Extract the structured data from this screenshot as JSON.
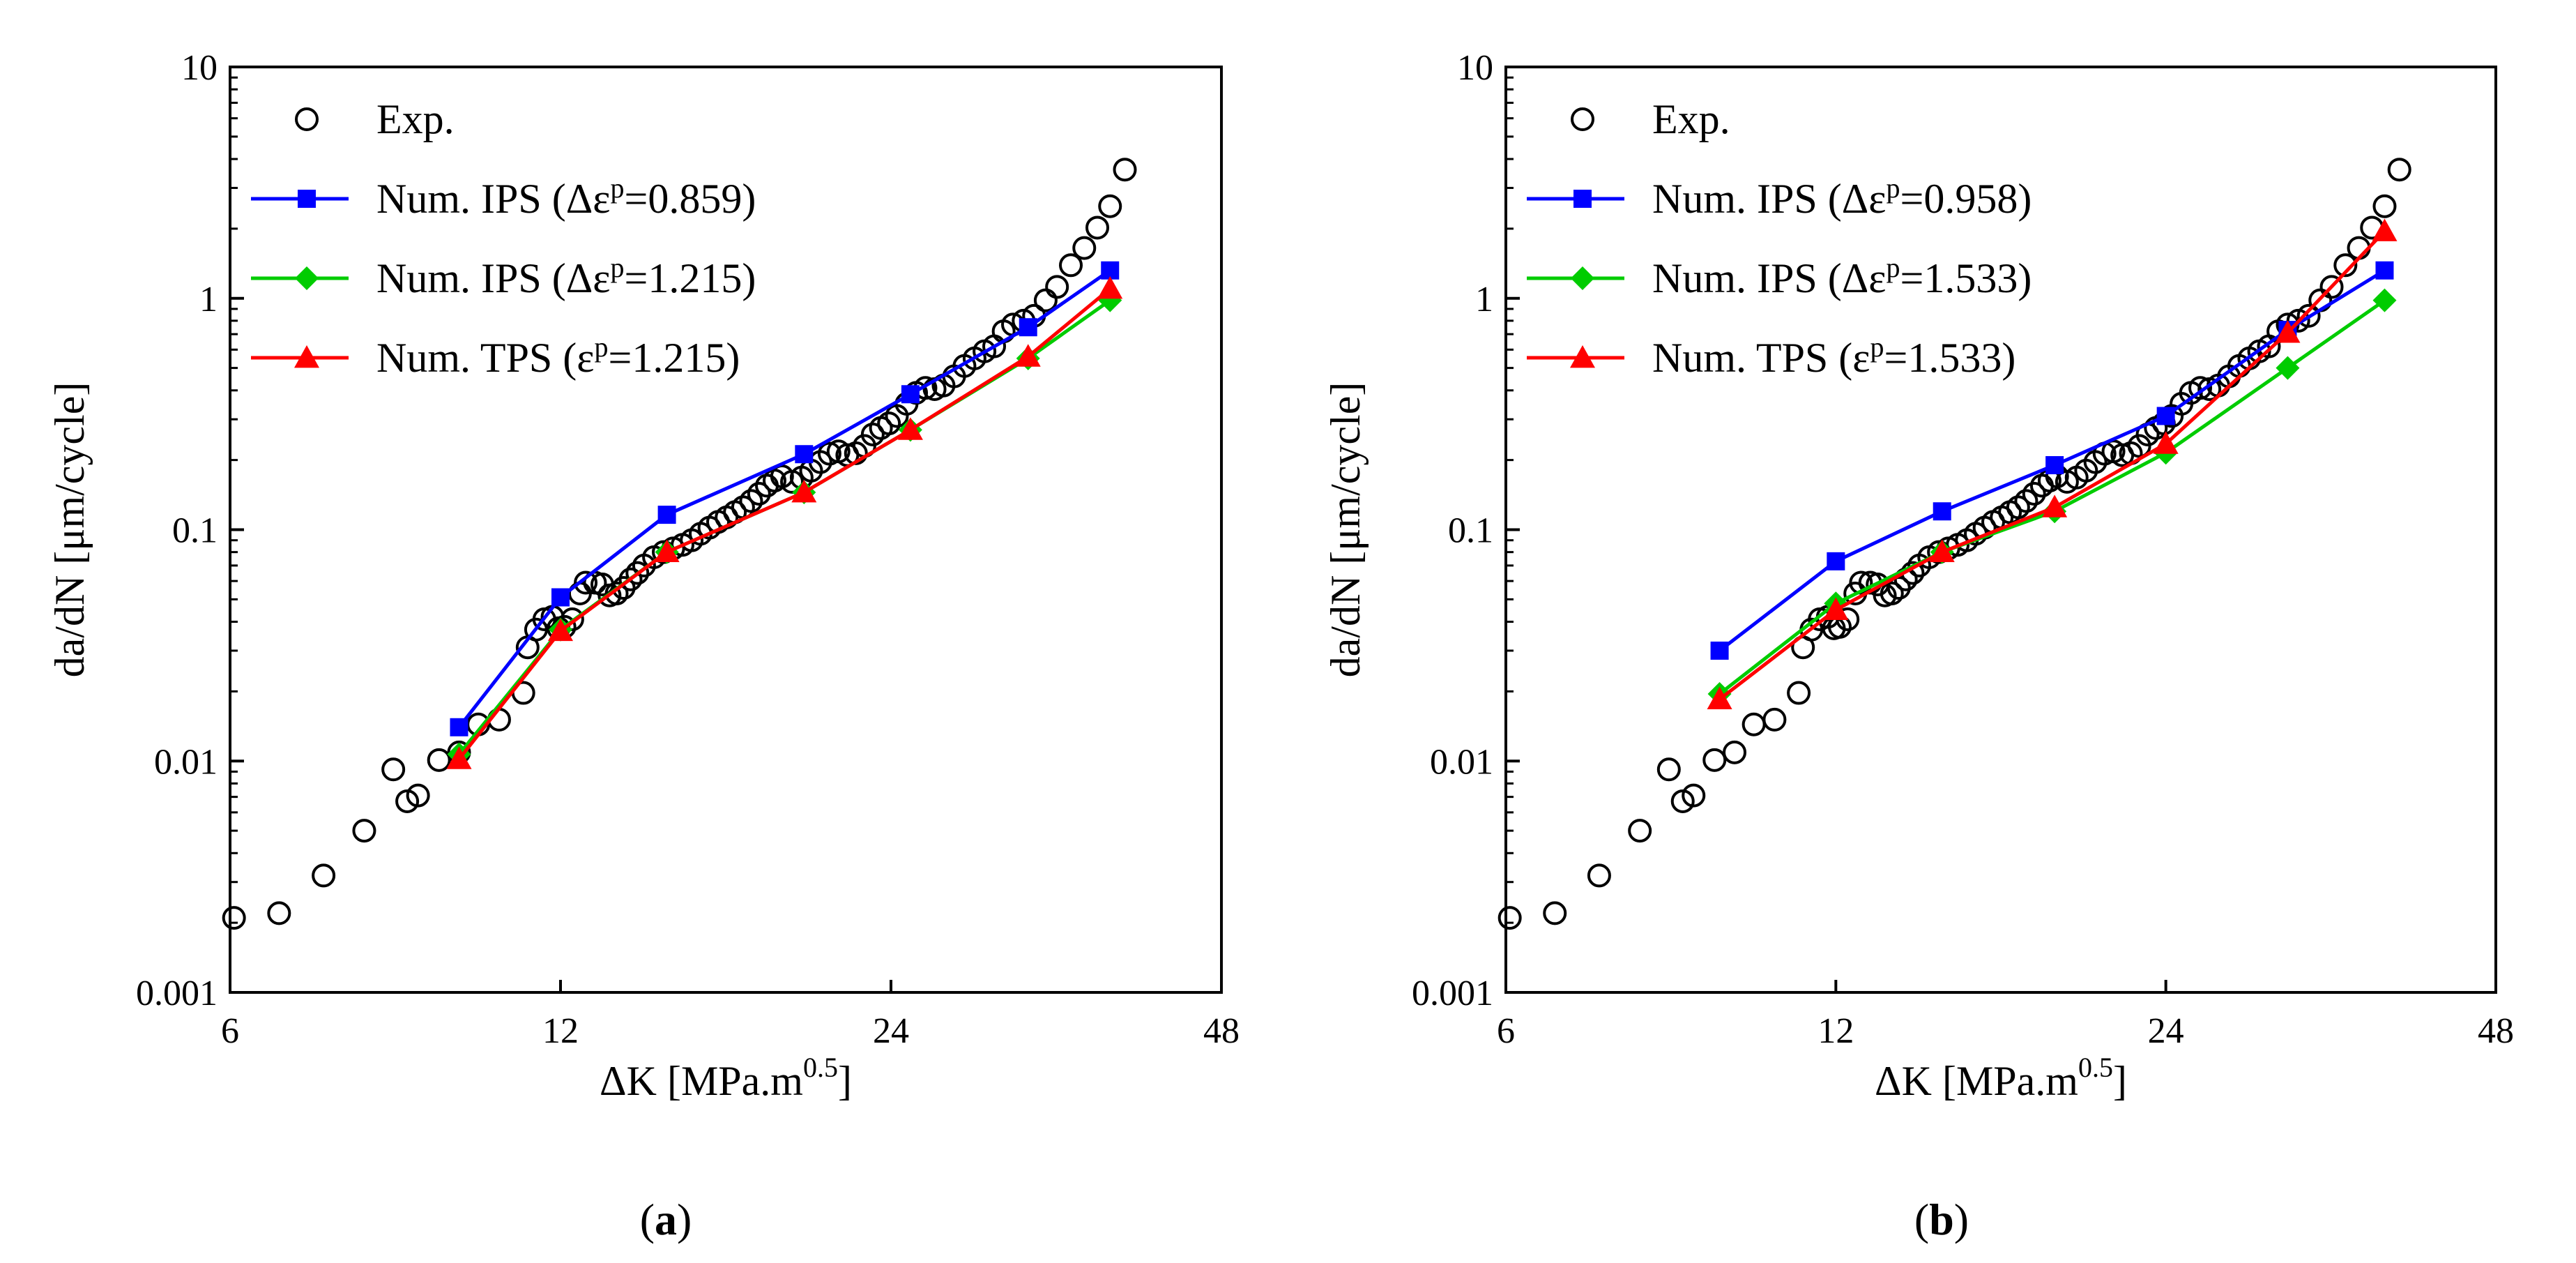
{
  "figure": {
    "panels": [
      {
        "caption_letter": "a",
        "caption_open": "(",
        "caption_close": ")"
      },
      {
        "caption_letter": "b",
        "caption_open": "(",
        "caption_close": ")"
      }
    ]
  },
  "chart_data": [
    {
      "type": "line",
      "panel": "a",
      "xscale": "log2",
      "yscale": "log10",
      "xlabel": "ΔK [MPa.m",
      "xlabel_sup": "0.5",
      "xlabel_end": "]",
      "ylabel": "da/dN [μm/cycle]",
      "xlim": [
        6,
        48
      ],
      "ylim": [
        0.001,
        10
      ],
      "xticks": [
        6,
        12,
        24,
        48
      ],
      "xtick_labels": [
        "6",
        "12",
        "24",
        "48"
      ],
      "yticks": [
        0.001,
        0.01,
        0.1,
        1,
        10
      ],
      "ytick_labels": [
        "0.001",
        "0.01",
        "0.1",
        "1",
        "10"
      ],
      "legend_position": "top-left",
      "series": [
        {
          "name": "Exp.",
          "legend_parts": [
            "Exp."
          ],
          "marker": "circle-open",
          "color": "#000000",
          "line": false,
          "points": [
            [
              6.05,
              0.0021
            ],
            [
              6.65,
              0.0022
            ],
            [
              7.3,
              0.0032
            ],
            [
              7.95,
              0.005
            ],
            [
              8.45,
              0.0092
            ],
            [
              8.7,
              0.0067
            ],
            [
              8.9,
              0.0071
            ],
            [
              9.3,
              0.0101
            ],
            [
              9.7,
              0.0109
            ],
            [
              10.1,
              0.0144
            ],
            [
              10.55,
              0.0151
            ],
            [
              11.1,
              0.0197
            ],
            [
              11.2,
              0.031
            ],
            [
              11.4,
              0.037
            ],
            [
              11.6,
              0.041
            ],
            [
              11.8,
              0.042
            ],
            [
              11.95,
              0.0375
            ],
            [
              12.1,
              0.038
            ],
            [
              12.3,
              0.041
            ],
            [
              12.5,
              0.053
            ],
            [
              12.65,
              0.059
            ],
            [
              12.9,
              0.059
            ],
            [
              13.1,
              0.058
            ],
            [
              13.3,
              0.052
            ],
            [
              13.5,
              0.053
            ],
            [
              13.7,
              0.056
            ],
            [
              13.9,
              0.061
            ],
            [
              14.1,
              0.065
            ],
            [
              14.3,
              0.07
            ],
            [
              14.6,
              0.076
            ],
            [
              14.9,
              0.08
            ],
            [
              15.2,
              0.083
            ],
            [
              15.5,
              0.086
            ],
            [
              15.8,
              0.09
            ],
            [
              16.1,
              0.096
            ],
            [
              16.4,
              0.102
            ],
            [
              16.7,
              0.108
            ],
            [
              17.0,
              0.113
            ],
            [
              17.3,
              0.119
            ],
            [
              17.6,
              0.125
            ],
            [
              17.9,
              0.133
            ],
            [
              18.2,
              0.143
            ],
            [
              18.5,
              0.155
            ],
            [
              18.8,
              0.163
            ],
            [
              19.1,
              0.17
            ],
            [
              19.5,
              0.161
            ],
            [
              19.9,
              0.168
            ],
            [
              20.3,
              0.18
            ],
            [
              20.7,
              0.196
            ],
            [
              21.1,
              0.213
            ],
            [
              21.5,
              0.218
            ],
            [
              21.9,
              0.21
            ],
            [
              22.3,
              0.214
            ],
            [
              22.7,
              0.23
            ],
            [
              23.1,
              0.258
            ],
            [
              23.5,
              0.275
            ],
            [
              23.9,
              0.288
            ],
            [
              24.3,
              0.31
            ],
            [
              24.8,
              0.35
            ],
            [
              25.3,
              0.39
            ],
            [
              25.8,
              0.41
            ],
            [
              26.3,
              0.405
            ],
            [
              26.8,
              0.42
            ],
            [
              27.4,
              0.46
            ],
            [
              28.0,
              0.51
            ],
            [
              28.6,
              0.55
            ],
            [
              29.2,
              0.59
            ],
            [
              29.8,
              0.62
            ],
            [
              30.4,
              0.72
            ],
            [
              31.0,
              0.77
            ],
            [
              31.7,
              0.8
            ],
            [
              32.4,
              0.84
            ],
            [
              33.2,
              0.98
            ],
            [
              34.0,
              1.12
            ],
            [
              35.0,
              1.39
            ],
            [
              36.0,
              1.65
            ],
            [
              37.0,
              2.02
            ],
            [
              38.0,
              2.5
            ],
            [
              39.2,
              3.6
            ]
          ]
        },
        {
          "name": "Num. IPS (Δεp=0.859)",
          "legend_parts": [
            "Num. IPS (Δε",
            "p",
            "=0.859)"
          ],
          "marker": "square",
          "color": "#0000ff",
          "line": true,
          "points": [
            [
              9.7,
              0.014
            ],
            [
              12.0,
              0.051
            ],
            [
              15.0,
              0.116
            ],
            [
              20.0,
              0.212
            ],
            [
              25.0,
              0.385
            ],
            [
              32.0,
              0.75
            ],
            [
              38.0,
              1.32
            ]
          ]
        },
        {
          "name": "Num. IPS (Δεp=1.215)",
          "legend_parts": [
            "Num. IPS (Δε",
            "p",
            "=1.215)"
          ],
          "marker": "diamond",
          "color": "#00cc00",
          "line": true,
          "points": [
            [
              9.7,
              0.0107
            ],
            [
              12.0,
              0.037
            ],
            [
              15.0,
              0.08
            ],
            [
              20.0,
              0.145
            ],
            [
              25.0,
              0.27
            ],
            [
              32.0,
              0.55
            ],
            [
              38.0,
              0.98
            ]
          ]
        },
        {
          "name": "Num. TPS (εp=1.215)",
          "legend_parts": [
            "Num. TPS (ε",
            "p",
            "=1.215)"
          ],
          "marker": "triangle",
          "color": "#ff0000",
          "line": true,
          "points": [
            [
              9.7,
              0.0102
            ],
            [
              12.0,
              0.0365
            ],
            [
              15.0,
              0.08
            ],
            [
              20.0,
              0.145
            ],
            [
              25.0,
              0.27
            ],
            [
              32.0,
              0.56
            ],
            [
              38.0,
              1.1
            ]
          ]
        }
      ]
    },
    {
      "type": "line",
      "panel": "b",
      "xscale": "log2",
      "yscale": "log10",
      "xlabel": "ΔK [MPa.m",
      "xlabel_sup": "0.5",
      "xlabel_end": "]",
      "ylabel": "da/dN [μm/cycle]",
      "xlim": [
        6,
        48
      ],
      "ylim": [
        0.001,
        10
      ],
      "xticks": [
        6,
        12,
        24,
        48
      ],
      "xtick_labels": [
        "6",
        "12",
        "24",
        "48"
      ],
      "yticks": [
        0.001,
        0.01,
        0.1,
        1,
        10
      ],
      "ytick_labels": [
        "0.001",
        "0.01",
        "0.1",
        "1",
        "10"
      ],
      "legend_position": "top-left",
      "series": [
        {
          "name": "Exp.",
          "legend_parts": [
            "Exp."
          ],
          "marker": "circle-open",
          "color": "#000000",
          "line": false,
          "points": [
            [
              6.05,
              0.0021
            ],
            [
              6.65,
              0.0022
            ],
            [
              7.3,
              0.0032
            ],
            [
              7.95,
              0.005
            ],
            [
              8.45,
              0.0092
            ],
            [
              8.7,
              0.0067
            ],
            [
              8.9,
              0.0071
            ],
            [
              9.3,
              0.0101
            ],
            [
              9.7,
              0.0109
            ],
            [
              10.1,
              0.0144
            ],
            [
              10.55,
              0.0151
            ],
            [
              11.1,
              0.0197
            ],
            [
              11.2,
              0.031
            ],
            [
              11.4,
              0.037
            ],
            [
              11.6,
              0.041
            ],
            [
              11.8,
              0.042
            ],
            [
              11.95,
              0.0375
            ],
            [
              12.1,
              0.038
            ],
            [
              12.3,
              0.041
            ],
            [
              12.5,
              0.053
            ],
            [
              12.65,
              0.059
            ],
            [
              12.9,
              0.059
            ],
            [
              13.1,
              0.058
            ],
            [
              13.3,
              0.052
            ],
            [
              13.5,
              0.053
            ],
            [
              13.7,
              0.056
            ],
            [
              13.9,
              0.061
            ],
            [
              14.1,
              0.065
            ],
            [
              14.3,
              0.07
            ],
            [
              14.6,
              0.076
            ],
            [
              14.9,
              0.08
            ],
            [
              15.2,
              0.083
            ],
            [
              15.5,
              0.086
            ],
            [
              15.8,
              0.09
            ],
            [
              16.1,
              0.096
            ],
            [
              16.4,
              0.102
            ],
            [
              16.7,
              0.108
            ],
            [
              17.0,
              0.113
            ],
            [
              17.3,
              0.119
            ],
            [
              17.6,
              0.125
            ],
            [
              17.9,
              0.133
            ],
            [
              18.2,
              0.143
            ],
            [
              18.5,
              0.155
            ],
            [
              18.8,
              0.163
            ],
            [
              19.1,
              0.17
            ],
            [
              19.5,
              0.161
            ],
            [
              19.9,
              0.168
            ],
            [
              20.3,
              0.18
            ],
            [
              20.7,
              0.196
            ],
            [
              21.1,
              0.213
            ],
            [
              21.5,
              0.218
            ],
            [
              21.9,
              0.21
            ],
            [
              22.3,
              0.214
            ],
            [
              22.7,
              0.23
            ],
            [
              23.1,
              0.258
            ],
            [
              23.5,
              0.275
            ],
            [
              23.9,
              0.288
            ],
            [
              24.3,
              0.31
            ],
            [
              24.8,
              0.35
            ],
            [
              25.3,
              0.39
            ],
            [
              25.8,
              0.41
            ],
            [
              26.3,
              0.405
            ],
            [
              26.8,
              0.42
            ],
            [
              27.4,
              0.46
            ],
            [
              28.0,
              0.51
            ],
            [
              28.6,
              0.55
            ],
            [
              29.2,
              0.59
            ],
            [
              29.8,
              0.62
            ],
            [
              30.4,
              0.72
            ],
            [
              31.0,
              0.77
            ],
            [
              31.7,
              0.8
            ],
            [
              32.4,
              0.84
            ],
            [
              33.2,
              0.98
            ],
            [
              34.0,
              1.12
            ],
            [
              35.0,
              1.39
            ],
            [
              36.0,
              1.65
            ],
            [
              37.0,
              2.02
            ],
            [
              38.0,
              2.5
            ],
            [
              39.2,
              3.6
            ]
          ]
        },
        {
          "name": "Num. IPS (Δεp=0.958)",
          "legend_parts": [
            "Num. IPS (Δε",
            "p",
            "=0.958)"
          ],
          "marker": "square",
          "color": "#0000ff",
          "line": true,
          "points": [
            [
              9.4,
              0.03
            ],
            [
              12.0,
              0.073
            ],
            [
              15.0,
              0.12
            ],
            [
              19.0,
              0.19
            ],
            [
              24.0,
              0.31
            ],
            [
              31.0,
              0.73
            ],
            [
              38.0,
              1.32
            ]
          ]
        },
        {
          "name": "Num. IPS (Δεp=1.533)",
          "legend_parts": [
            "Num. IPS (Δε",
            "p",
            "=1.533)"
          ],
          "marker": "diamond",
          "color": "#00cc00",
          "line": true,
          "points": [
            [
              9.4,
              0.0195
            ],
            [
              12.0,
              0.048
            ],
            [
              15.0,
              0.08
            ],
            [
              19.0,
              0.12
            ],
            [
              24.0,
              0.215
            ],
            [
              31.0,
              0.5
            ],
            [
              38.0,
              0.98
            ]
          ]
        },
        {
          "name": "Num. TPS (εp=1.533)",
          "legend_parts": [
            "Num. TPS (ε",
            "p",
            "=1.533)"
          ],
          "marker": "triangle",
          "color": "#ff0000",
          "line": true,
          "points": [
            [
              9.4,
              0.0185
            ],
            [
              12.0,
              0.045
            ],
            [
              15.0,
              0.08
            ],
            [
              19.0,
              0.125
            ],
            [
              24.0,
              0.235
            ],
            [
              31.0,
              0.71
            ],
            [
              38.0,
              1.95
            ]
          ]
        }
      ]
    }
  ]
}
